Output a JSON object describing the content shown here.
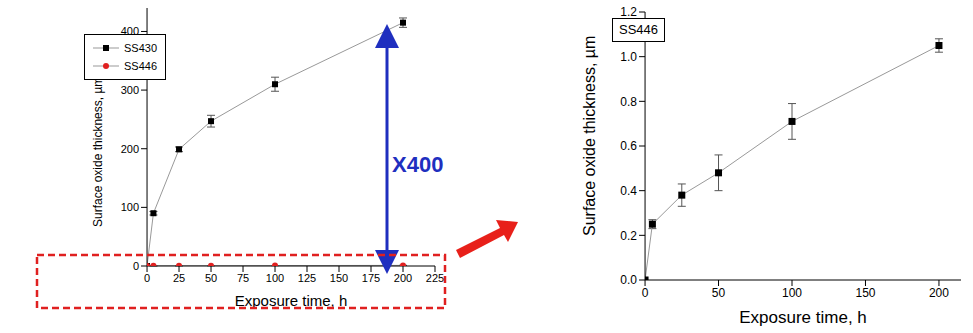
{
  "chart_data": [
    {
      "type": "line",
      "x_label": "Exposure time, h",
      "y_label": "Surface oxide thickness, µm",
      "x": [
        0,
        5,
        25,
        50,
        100,
        200
      ],
      "series": [
        {
          "name": "SS430",
          "color": "#000000",
          "marker": "square",
          "values": [
            0,
            90,
            199,
            247,
            310,
            415
          ],
          "errors": [
            0,
            3,
            4,
            10,
            12,
            8
          ]
        },
        {
          "name": "SS446",
          "color": "#e02020",
          "marker": "circle",
          "values": [
            0,
            0.25,
            0.38,
            0.48,
            0.71,
            1.05
          ],
          "errors": [
            0,
            0.02,
            0.05,
            0.08,
            0.08,
            0.03
          ]
        }
      ],
      "xlim": [
        0,
        225
      ],
      "xticks": [
        0,
        25,
        50,
        75,
        100,
        125,
        150,
        175,
        200,
        225
      ],
      "ylim": [
        0,
        440
      ],
      "yticks": [
        0,
        100,
        200,
        300,
        400
      ],
      "legend": "upper left",
      "annotations": [
        {
          "text": "X400"
        }
      ]
    },
    {
      "type": "line",
      "x_label": "Exposure time, h",
      "y_label": "Surface oxide thickness, µm",
      "x": [
        0,
        5,
        25,
        50,
        100,
        200
      ],
      "series": [
        {
          "name": "SS446",
          "color": "#000000",
          "marker": "square",
          "values": [
            0,
            0.25,
            0.38,
            0.48,
            0.71,
            1.05
          ],
          "errors": [
            0,
            0.02,
            0.05,
            0.08,
            0.08,
            0.03
          ]
        }
      ],
      "xlim": [
        0,
        215
      ],
      "xticks": [
        0,
        50,
        100,
        150,
        200
      ],
      "ylim": [
        0,
        1.2
      ],
      "yticks": [
        {
          "value": 0,
          "label": "0.0"
        },
        0.2,
        0.4,
        0.6,
        0.8,
        {
          "value": 1,
          "label": "1.0"
        },
        1.2
      ],
      "legend": "upper left"
    }
  ]
}
